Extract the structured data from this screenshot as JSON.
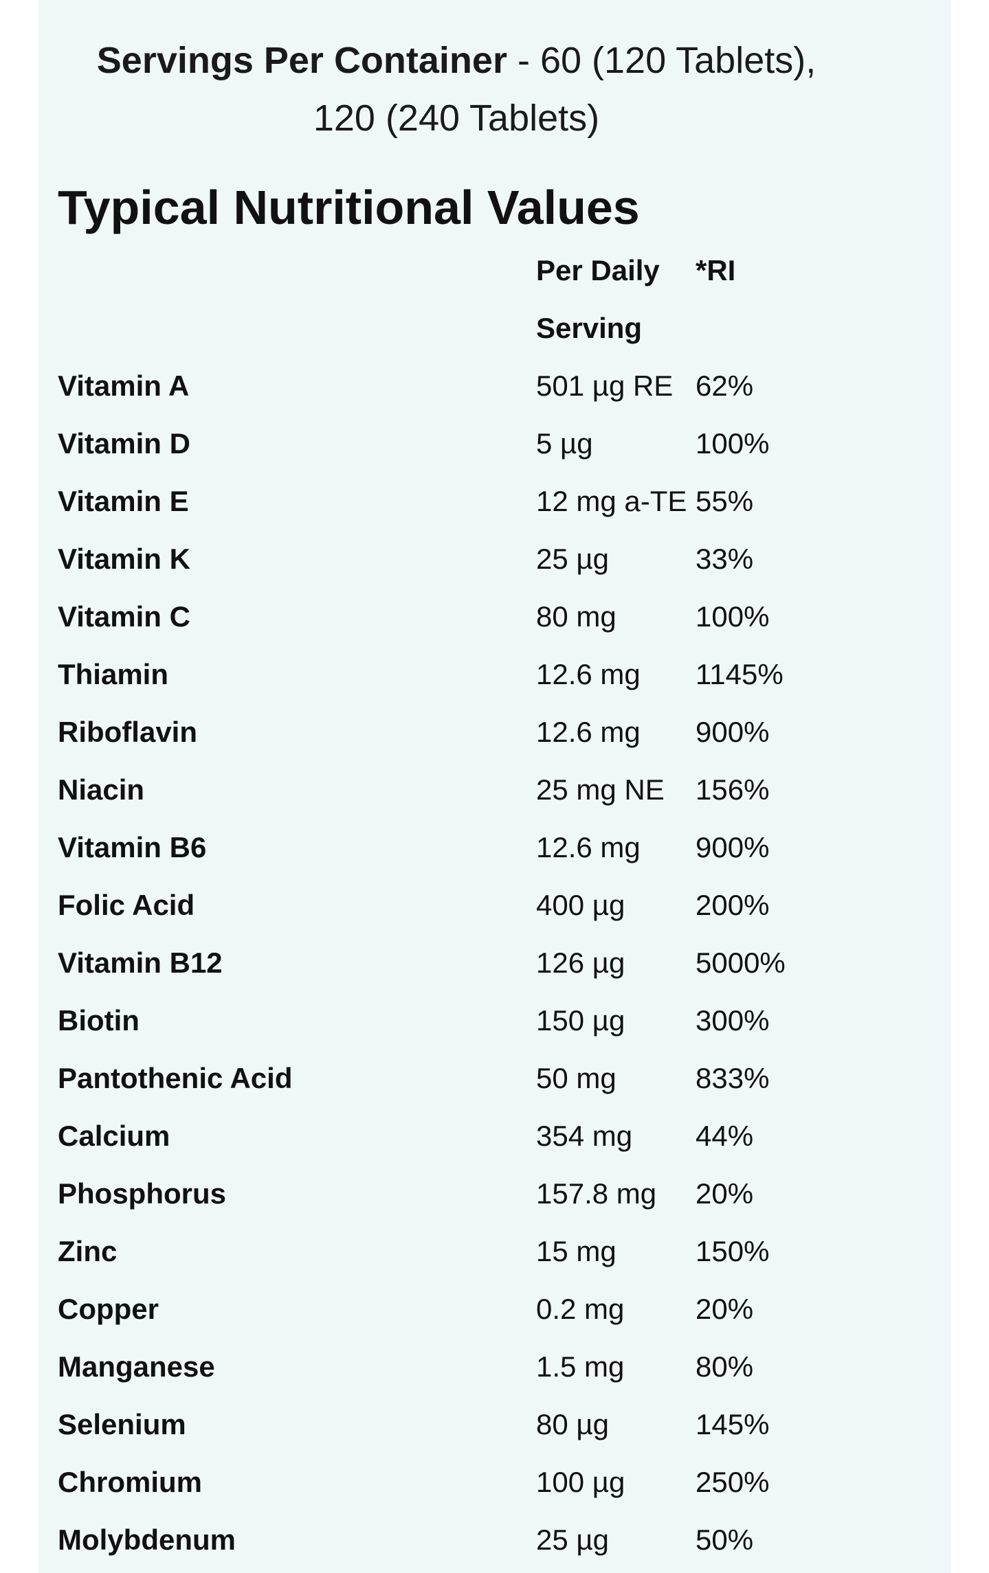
{
  "servings": {
    "label": "Servings Per Container",
    "value_line1": "- 60 (120 Tablets),",
    "value_line2": "120 (240 Tablets)"
  },
  "title": "Typical Nutritional Values",
  "table": {
    "headers": {
      "amount_line1": "Per Daily",
      "amount_line2": "Serving",
      "ri": "*RI"
    },
    "rows": [
      {
        "name": "Vitamin A",
        "amount": "501 µg RE",
        "ri": "62%"
      },
      {
        "name": "Vitamin D",
        "amount": "5 µg",
        "ri": "100%"
      },
      {
        "name": "Vitamin E",
        "amount": "12 mg a-TE",
        "ri": "55%"
      },
      {
        "name": "Vitamin K",
        "amount": "25 µg",
        "ri": "33%"
      },
      {
        "name": "Vitamin C",
        "amount": "80 mg",
        "ri": "100%"
      },
      {
        "name": "Thiamin",
        "amount": "12.6 mg",
        "ri": "1145%"
      },
      {
        "name": "Riboflavin",
        "amount": "12.6 mg",
        "ri": "900%"
      },
      {
        "name": "Niacin",
        "amount": "25 mg NE",
        "ri": "156%"
      },
      {
        "name": "Vitamin B6",
        "amount": "12.6 mg",
        "ri": "900%"
      },
      {
        "name": "Folic Acid",
        "amount": "400 µg",
        "ri": "200%"
      },
      {
        "name": "Vitamin B12",
        "amount": "126 µg",
        "ri": "5000%"
      },
      {
        "name": "Biotin",
        "amount": "150 µg",
        "ri": "300%"
      },
      {
        "name": "Pantothenic Acid",
        "amount": "50 mg",
        "ri": "833%"
      },
      {
        "name": "Calcium",
        "amount": "354 mg",
        "ri": "44%"
      },
      {
        "name": "Phosphorus",
        "amount": "157.8 mg",
        "ri": "20%"
      },
      {
        "name": "Zinc",
        "amount": "15 mg",
        "ri": "150%"
      },
      {
        "name": "Copper",
        "amount": "0.2 mg",
        "ri": "20%"
      },
      {
        "name": "Manganese",
        "amount": "1.5 mg",
        "ri": "80%"
      },
      {
        "name": "Selenium",
        "amount": "80 µg",
        "ri": "145%"
      },
      {
        "name": "Chromium",
        "amount": "100 µg",
        "ri": "250%"
      },
      {
        "name": "Molybdenum",
        "amount": "25 µg",
        "ri": "50%"
      }
    ]
  },
  "colors": {
    "panel_background": "#f0f8f7",
    "text": "#111111"
  }
}
